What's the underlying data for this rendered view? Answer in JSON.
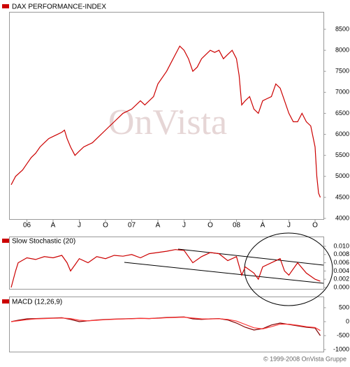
{
  "chart_data": [
    {
      "type": "line",
      "title": "DAX PERFORMANCE-INDEX",
      "watermark": "OnVista",
      "xlim": [
        -2,
        34
      ],
      "xticks": [
        {
          "value": 0,
          "label": "06"
        },
        {
          "value": 3,
          "label": "A"
        },
        {
          "value": 6,
          "label": "J"
        },
        {
          "value": 9,
          "label": "O"
        },
        {
          "value": 12,
          "label": "07"
        },
        {
          "value": 15,
          "label": "A"
        },
        {
          "value": 18,
          "label": "J"
        },
        {
          "value": 21,
          "label": "O"
        },
        {
          "value": 24,
          "label": "08"
        },
        {
          "value": 27,
          "label": "A"
        },
        {
          "value": 30,
          "label": "J"
        },
        {
          "value": 33,
          "label": "O"
        }
      ],
      "ylim": [
        4000,
        8500
      ],
      "yticks": [
        4000,
        4500,
        5000,
        5500,
        6000,
        6500,
        7000,
        7500,
        8000,
        8500
      ],
      "x": [
        -1.8,
        -1.3,
        -0.5,
        0,
        0.5,
        1,
        1.5,
        2,
        2.5,
        3,
        3.5,
        4,
        4.3,
        4.6,
        5,
        5.5,
        6,
        6.5,
        7,
        7.5,
        8,
        9,
        10,
        11,
        12,
        13,
        13.5,
        14.5,
        15,
        16,
        16.5,
        17,
        17.5,
        18,
        18.5,
        19,
        19.5,
        20,
        20.5,
        21,
        21.5,
        22,
        22.5,
        23,
        23.5,
        24,
        24.3,
        24.6,
        25,
        25.5,
        26,
        26.5,
        27,
        28,
        28.5,
        29,
        29.5,
        30,
        30.5,
        31,
        31.5,
        32,
        32.5,
        33,
        33.2,
        33.4,
        33.6
      ],
      "series": [
        {
          "color": "#cc0000",
          "values": [
            4800,
            5000,
            5150,
            5300,
            5450,
            5550,
            5700,
            5800,
            5900,
            5950,
            6000,
            6050,
            6100,
            5900,
            5700,
            5500,
            5600,
            5700,
            5750,
            5800,
            5900,
            6100,
            6300,
            6500,
            6600,
            6800,
            6700,
            6900,
            7200,
            7500,
            7700,
            7900,
            8100,
            8000,
            7800,
            7500,
            7600,
            7800,
            7900,
            8000,
            7950,
            8000,
            7800,
            7900,
            8000,
            7800,
            7400,
            6700,
            6800,
            6900,
            6600,
            6500,
            6800,
            6900,
            7200,
            7100,
            6800,
            6500,
            6300,
            6300,
            6500,
            6300,
            6200,
            5700,
            5000,
            4600,
            4500
          ]
        }
      ]
    },
    {
      "type": "line",
      "title": "Slow Stochastic (20)",
      "xlim": [
        -2,
        34
      ],
      "ylim": [
        0,
        0.01
      ],
      "yticks": [
        {
          "value": 0.01,
          "label": "0.010"
        },
        {
          "value": 0.008,
          "label": "0.008"
        },
        {
          "value": 0.006,
          "label": "0.006"
        },
        {
          "value": 0.004,
          "label": "0.004"
        },
        {
          "value": 0.002,
          "label": "0.002"
        },
        {
          "value": 0,
          "label": "0.000"
        }
      ],
      "x": [
        -1.8,
        -1.3,
        -1,
        0,
        1,
        2,
        3,
        4,
        4.6,
        5,
        5.5,
        6,
        7,
        8,
        9,
        10,
        11,
        12,
        13,
        14,
        15,
        16,
        17,
        18,
        19,
        20,
        21,
        22,
        23,
        24,
        24.6,
        25,
        26,
        26.5,
        27,
        28,
        29,
        29.5,
        30,
        31,
        32,
        33,
        33.6
      ],
      "series": [
        {
          "color": "#cc0000",
          "values": [
            0,
            0.004,
            0.006,
            0.0072,
            0.0068,
            0.0075,
            0.0072,
            0.0078,
            0.006,
            0.004,
            0.0055,
            0.007,
            0.006,
            0.0075,
            0.007,
            0.0078,
            0.0076,
            0.008,
            0.0072,
            0.0082,
            0.0085,
            0.0088,
            0.0092,
            0.009,
            0.006,
            0.0075,
            0.0085,
            0.0082,
            0.0065,
            0.0075,
            0.003,
            0.005,
            0.0035,
            0.002,
            0.005,
            0.006,
            0.007,
            0.004,
            0.003,
            0.006,
            0.0035,
            0.002,
            0.0015
          ]
        }
      ]
    },
    {
      "type": "line",
      "title": "MACD (12,26,9)",
      "xlim": [
        -2,
        34
      ],
      "ylim": [
        -1000,
        500
      ],
      "yticks": [
        500,
        0,
        -500,
        -1000
      ],
      "x": [
        -1.8,
        -1,
        0,
        1,
        2,
        3,
        4,
        5,
        6,
        7,
        8,
        9,
        10,
        11,
        12,
        13,
        14,
        15,
        16,
        17,
        18,
        19,
        20,
        21,
        22,
        23,
        24,
        25,
        26,
        27,
        28,
        29,
        30,
        31,
        32,
        33,
        33.6
      ],
      "series": [
        {
          "color": "#800000",
          "values": [
            0,
            50,
            100,
            110,
            120,
            130,
            140,
            80,
            0,
            30,
            60,
            80,
            90,
            100,
            110,
            120,
            110,
            130,
            150,
            160,
            170,
            100,
            80,
            100,
            110,
            60,
            -50,
            -200,
            -300,
            -250,
            -120,
            -50,
            -100,
            -150,
            -200,
            -230,
            -500
          ]
        },
        {
          "color": "#ff3333",
          "values": [
            0,
            30,
            70,
            100,
            110,
            120,
            130,
            110,
            50,
            30,
            50,
            70,
            85,
            95,
            105,
            115,
            112,
            120,
            140,
            150,
            160,
            130,
            100,
            95,
            105,
            80,
            20,
            -100,
            -220,
            -260,
            -180,
            -90,
            -90,
            -130,
            -180,
            -210,
            -320
          ]
        }
      ]
    }
  ],
  "footer": "© 1999-2008 OnVista Gruppe"
}
